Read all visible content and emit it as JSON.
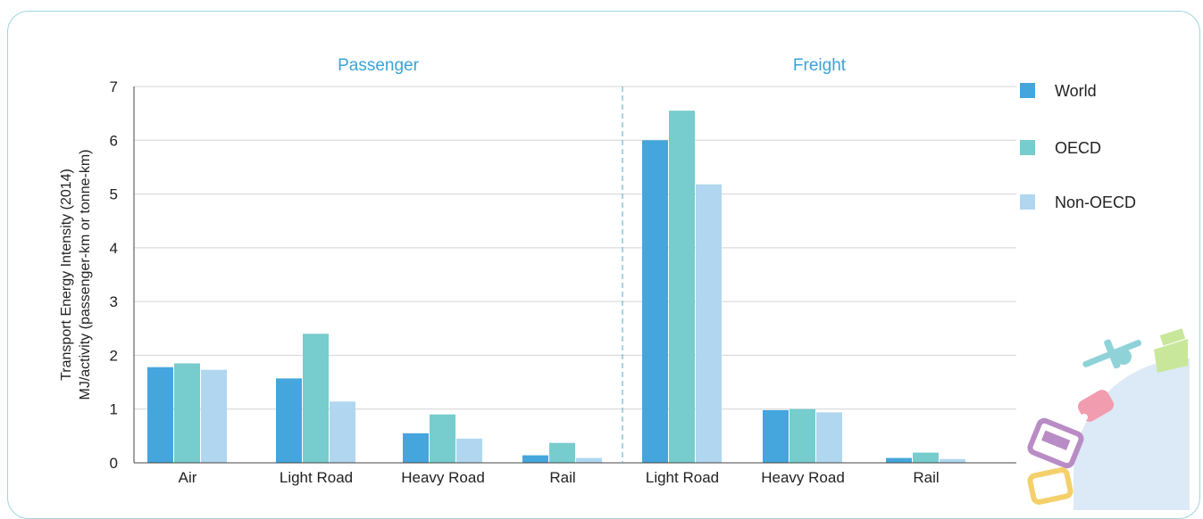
{
  "chart_data": {
    "type": "bar",
    "groups": [
      {
        "label": "Passenger",
        "categories": [
          "Air",
          "Light Road",
          "Heavy Road",
          "Rail"
        ]
      },
      {
        "label": "Freight",
        "categories": [
          "Light Road",
          "Heavy Road",
          "Rail"
        ]
      }
    ],
    "categories": [
      "Air",
      "Light Road",
      "Heavy Road",
      "Rail",
      "Light Road",
      "Heavy Road",
      "Rail"
    ],
    "series": [
      {
        "name": "World",
        "color": "#44a6dd",
        "values": [
          1.78,
          1.57,
          0.55,
          0.14,
          6.0,
          0.98,
          0.09
        ]
      },
      {
        "name": "OECD",
        "color": "#77cccd",
        "values": [
          1.85,
          2.4,
          0.9,
          0.37,
          6.55,
          1.0,
          0.19
        ]
      },
      {
        "name": "Non-OECD",
        "color": "#b0d7ef",
        "values": [
          1.73,
          1.14,
          0.45,
          0.09,
          5.18,
          0.94,
          0.07
        ]
      }
    ],
    "ylabel_line1": "Transport Energy Intensity (2014)",
    "ylabel_line2": "MJ/activity  (passenger-km or tonne-km)",
    "ylim": [
      0,
      7
    ],
    "yticks": [
      "0",
      "1",
      "2",
      "3",
      "4",
      "5",
      "6",
      "7"
    ],
    "grid": true,
    "legend": "right",
    "group_label_color": "#3ba3d6",
    "divider_color": "#6ab6d6"
  }
}
